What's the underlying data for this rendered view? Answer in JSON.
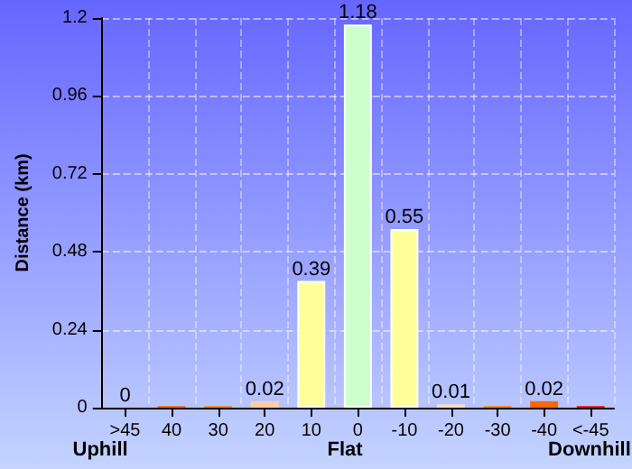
{
  "chart_data": {
    "type": "bar",
    "ylabel": "Distance (km)",
    "categories": [
      ">45",
      "40",
      "30",
      "20",
      "10",
      "0",
      "-10",
      "-20",
      "-30",
      "-40",
      "<-45"
    ],
    "values": [
      0,
      0.005,
      0.005,
      0.02,
      0.39,
      1.18,
      0.55,
      0.01,
      0.005,
      0.02,
      0.005
    ],
    "value_labels": [
      "0",
      null,
      null,
      "0.02",
      "0.39",
      "1.18",
      "0.55",
      "0.01",
      null,
      "0.02",
      null
    ],
    "colors": [
      "#ee1111",
      "#ff6600",
      "#ff8800",
      "#ffccaa",
      "#ffff99",
      "#ccffcc",
      "#ffff99",
      "#ffddbb",
      "#ff8800",
      "#ff6600",
      "#ee1111"
    ],
    "ylim": [
      0,
      1.2
    ],
    "yticks": [
      0,
      0.24,
      0.48,
      0.72,
      0.96,
      1.2
    ],
    "grid": true,
    "annotations": [
      "Uphill",
      "Flat",
      "Downhill"
    ]
  }
}
